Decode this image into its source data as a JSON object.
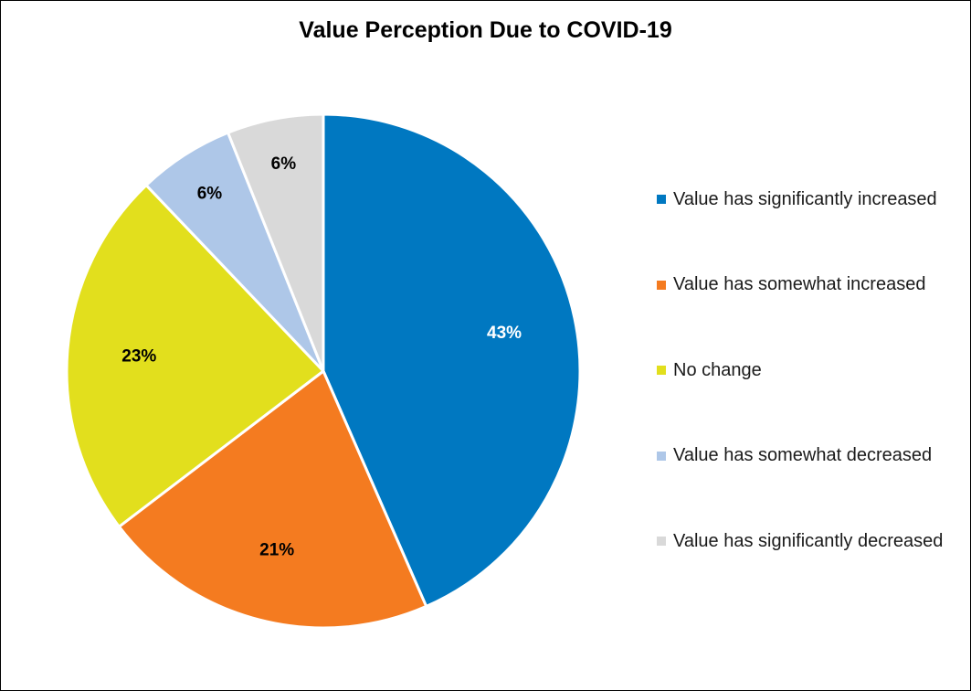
{
  "chart_data": {
    "type": "pie",
    "title": "Value Perception Due to COVID-19",
    "categories": [
      "Value has significantly increased",
      "Value has somewhat increased",
      "No change",
      "Value has somewhat decreased",
      "Value has significantly decreased"
    ],
    "values": [
      43,
      21,
      23,
      6,
      6
    ],
    "labels": [
      "43%",
      "21%",
      "23%",
      "6%",
      "6%"
    ],
    "colors": [
      "#0078C1",
      "#F47B20",
      "#E2DF1D",
      "#AEC7E8",
      "#D9D9D9"
    ],
    "label_colors": [
      "#ffffff",
      "#000000",
      "#000000",
      "#000000",
      "#000000"
    ],
    "legend_position": "right"
  }
}
